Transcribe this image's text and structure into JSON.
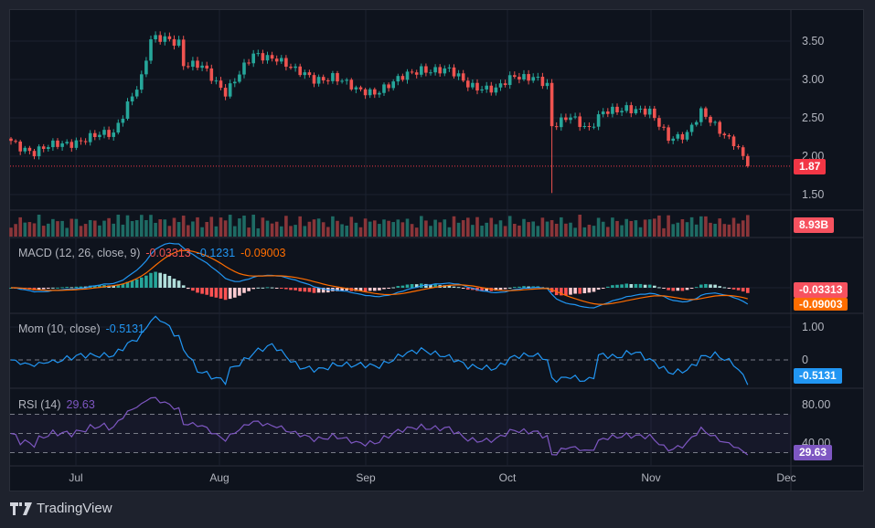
{
  "footer": {
    "brand": "TradingView"
  },
  "colors": {
    "up": "#26a69a",
    "down": "#ef5350",
    "macd": "#2196f3",
    "signal": "#ff6d00",
    "mom": "#2196f3",
    "rsi": "#7e57c2",
    "grid": "#1c2130",
    "axis_text": "#b2b5be"
  },
  "price_tag": "1.87",
  "volume_tag": "8.93B",
  "macd": {
    "label": "MACD (12, 26, close, 9)",
    "hist": "-0.03313",
    "macd": "-0.1231",
    "signal": "-0.09003",
    "tag_hist": "-0.03313",
    "tag_signal": "-0.09003"
  },
  "mom": {
    "label": "Mom (10, close)",
    "value": "-0.5131",
    "tag": "-0.5131"
  },
  "rsi": {
    "label": "RSI (14)",
    "value": "29.63",
    "tag": "29.63"
  },
  "chart_data": {
    "type": "candlestick",
    "x_labels": [
      "Jul",
      "Aug",
      "Sep",
      "Oct",
      "Nov",
      "Dec"
    ],
    "price_ticks": [
      "3.50",
      "3.00",
      "2.50",
      "2.00",
      "1.50"
    ],
    "price_ylim": [
      1.25,
      3.75
    ],
    "mom_ticks": [
      "1.00",
      "0"
    ],
    "rsi_ticks": [
      "80.00",
      "40.00"
    ],
    "rsi_bands": [
      70,
      50,
      30
    ],
    "last_price": 1.87,
    "close_keypoints": [
      [
        0,
        2.2
      ],
      [
        5,
        2.05
      ],
      [
        10,
        2.15
      ],
      [
        18,
        2.25
      ],
      [
        22,
        2.3
      ],
      [
        25,
        2.7
      ],
      [
        28,
        3.0
      ],
      [
        30,
        3.5
      ],
      [
        33,
        3.55
      ],
      [
        36,
        3.5
      ],
      [
        37,
        3.2
      ],
      [
        41,
        3.15
      ],
      [
        46,
        2.85
      ],
      [
        52,
        3.3
      ],
      [
        57,
        3.3
      ],
      [
        61,
        3.1
      ],
      [
        65,
        3.0
      ],
      [
        69,
        3.05
      ],
      [
        74,
        2.85
      ],
      [
        78,
        2.85
      ],
      [
        82,
        2.95
      ],
      [
        88,
        3.15
      ],
      [
        94,
        3.1
      ],
      [
        98,
        2.95
      ],
      [
        104,
        2.85
      ],
      [
        108,
        3.05
      ],
      [
        112,
        3.05
      ],
      [
        115,
        2.9
      ],
      [
        116,
        2.35
      ],
      [
        120,
        2.55
      ],
      [
        124,
        2.35
      ],
      [
        127,
        2.55
      ],
      [
        132,
        2.65
      ],
      [
        137,
        2.55
      ],
      [
        141,
        2.25
      ],
      [
        145,
        2.3
      ],
      [
        148,
        2.55
      ],
      [
        152,
        2.35
      ],
      [
        155,
        2.2
      ],
      [
        158,
        1.87
      ]
    ]
  }
}
